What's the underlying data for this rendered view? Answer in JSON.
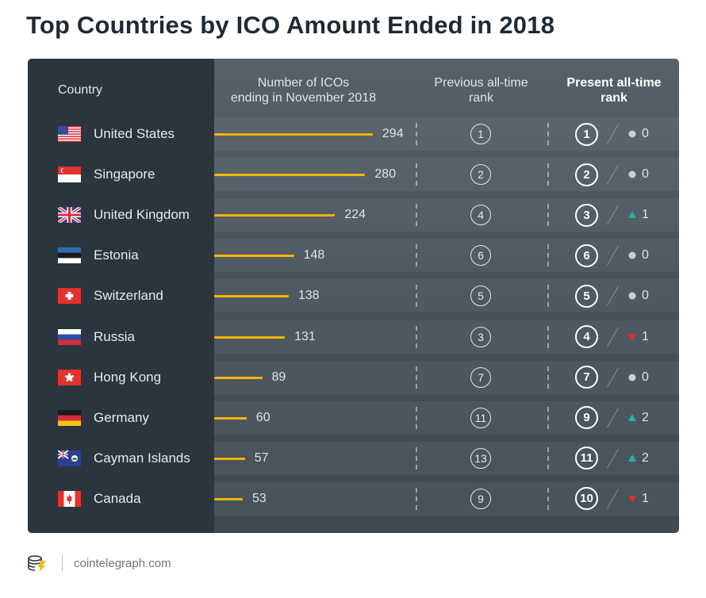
{
  "title": "Top Countries by ICO Amount Ended in 2018",
  "headers": {
    "country": "Country",
    "count_line1": "Number of ICOs",
    "count_line2": "ending in November 2018",
    "prev_line1": "Previous all-time",
    "prev_line2": "rank",
    "pres_line1": "Present all-time",
    "pres_line2": "rank"
  },
  "colors": {
    "bar": "#f5b400",
    "up": "#27b3a6",
    "down": "#e0302d",
    "neutral": "#c9d0d6"
  },
  "rows": [
    {
      "country": "United States",
      "flag": "us-flag-icon",
      "count": 294,
      "previous_rank": 1,
      "present_rank": 1,
      "change": "neutral",
      "change_value": "0"
    },
    {
      "country": "Singapore",
      "flag": "singapore-flag-icon",
      "count": 280,
      "previous_rank": 2,
      "present_rank": 2,
      "change": "neutral",
      "change_value": "0"
    },
    {
      "country": "United Kingdom",
      "flag": "uk-flag-icon",
      "count": 224,
      "previous_rank": 4,
      "present_rank": 3,
      "change": "up",
      "change_value": "1"
    },
    {
      "country": "Estonia",
      "flag": "estonia-flag-icon",
      "count": 148,
      "previous_rank": 6,
      "present_rank": 6,
      "change": "neutral",
      "change_value": "0"
    },
    {
      "country": "Switzerland",
      "flag": "switzerland-flag-icon",
      "count": 138,
      "previous_rank": 5,
      "present_rank": 5,
      "change": "neutral",
      "change_value": "0"
    },
    {
      "country": "Russia",
      "flag": "russia-flag-icon",
      "count": 131,
      "previous_rank": 3,
      "present_rank": 4,
      "change": "down",
      "change_value": "1"
    },
    {
      "country": "Hong Kong",
      "flag": "hong-kong-flag-icon",
      "count": 89,
      "previous_rank": 7,
      "present_rank": 7,
      "change": "neutral",
      "change_value": "0"
    },
    {
      "country": "Germany",
      "flag": "germany-flag-icon",
      "count": 60,
      "previous_rank": 11,
      "present_rank": 9,
      "change": "up",
      "change_value": "2"
    },
    {
      "country": "Cayman Islands",
      "flag": "cayman-islands-flag-icon",
      "count": 57,
      "previous_rank": 13,
      "present_rank": 11,
      "change": "up",
      "change_value": "2"
    },
    {
      "country": "Canada",
      "flag": "canada-flag-icon",
      "count": 53,
      "previous_rank": 9,
      "present_rank": 10,
      "change": "down",
      "change_value": "1"
    }
  ],
  "chart_data": {
    "type": "table",
    "title": "Top Countries by ICO Amount Ended in 2018",
    "categories": [
      "United States",
      "Singapore",
      "United Kingdom",
      "Estonia",
      "Switzerland",
      "Russia",
      "Hong Kong",
      "Germany",
      "Cayman Islands",
      "Canada"
    ],
    "series": [
      {
        "name": "Number of ICOs ending in November 2018",
        "values": [
          294,
          280,
          224,
          148,
          138,
          131,
          89,
          60,
          57,
          53
        ]
      },
      {
        "name": "Previous all-time rank",
        "values": [
          1,
          2,
          4,
          6,
          5,
          3,
          7,
          11,
          13,
          9
        ]
      },
      {
        "name": "Present all-time rank",
        "values": [
          1,
          2,
          3,
          6,
          5,
          4,
          7,
          9,
          11,
          10
        ]
      }
    ],
    "rank_change": [
      "0",
      "0",
      "+1",
      "0",
      "0",
      "-1",
      "0",
      "+2",
      "+2",
      "-1"
    ]
  },
  "footer": {
    "logo": "cointelegraph-logo-icon",
    "text": "cointelegraph.com"
  }
}
